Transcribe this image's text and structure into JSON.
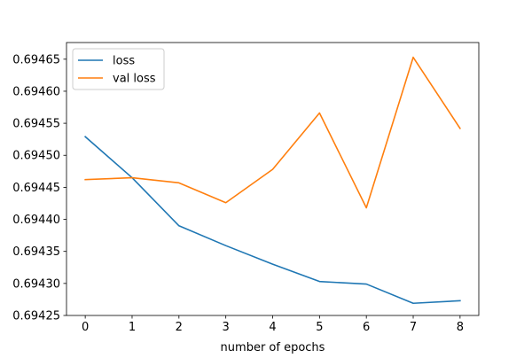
{
  "chart_data": {
    "type": "line",
    "x": [
      0,
      1,
      2,
      3,
      4,
      5,
      6,
      7,
      8
    ],
    "xlabel": "number of epochs",
    "ylabel": "",
    "title": "",
    "xlim": [
      -0.4,
      8.4
    ],
    "ylim": [
      0.69425,
      0.694676
    ],
    "xticks": [
      0,
      1,
      2,
      3,
      4,
      5,
      6,
      7,
      8
    ],
    "yticks": [
      0.69425,
      0.6943,
      0.69435,
      0.6944,
      0.69445,
      0.6945,
      0.69455,
      0.6946,
      0.69465
    ],
    "ytick_labels": [
      "0.69425",
      "0.69430",
      "0.69435",
      "0.69440",
      "0.69445",
      "0.69450",
      "0.69455",
      "0.69460",
      "0.69465"
    ],
    "grid": false,
    "legend_position": "top-left",
    "series": [
      {
        "name": "loss",
        "color": "#1f77b4",
        "values": [
          0.694529,
          0.694465,
          0.69439,
          0.694359,
          0.69433,
          0.694303,
          0.694299,
          0.694269,
          0.694273
        ]
      },
      {
        "name": "val loss",
        "color": "#ff7f0e",
        "values": [
          0.694462,
          0.694465,
          0.694457,
          0.694426,
          0.694478,
          0.694566,
          0.694418,
          0.694653,
          0.694542
        ]
      }
    ]
  }
}
